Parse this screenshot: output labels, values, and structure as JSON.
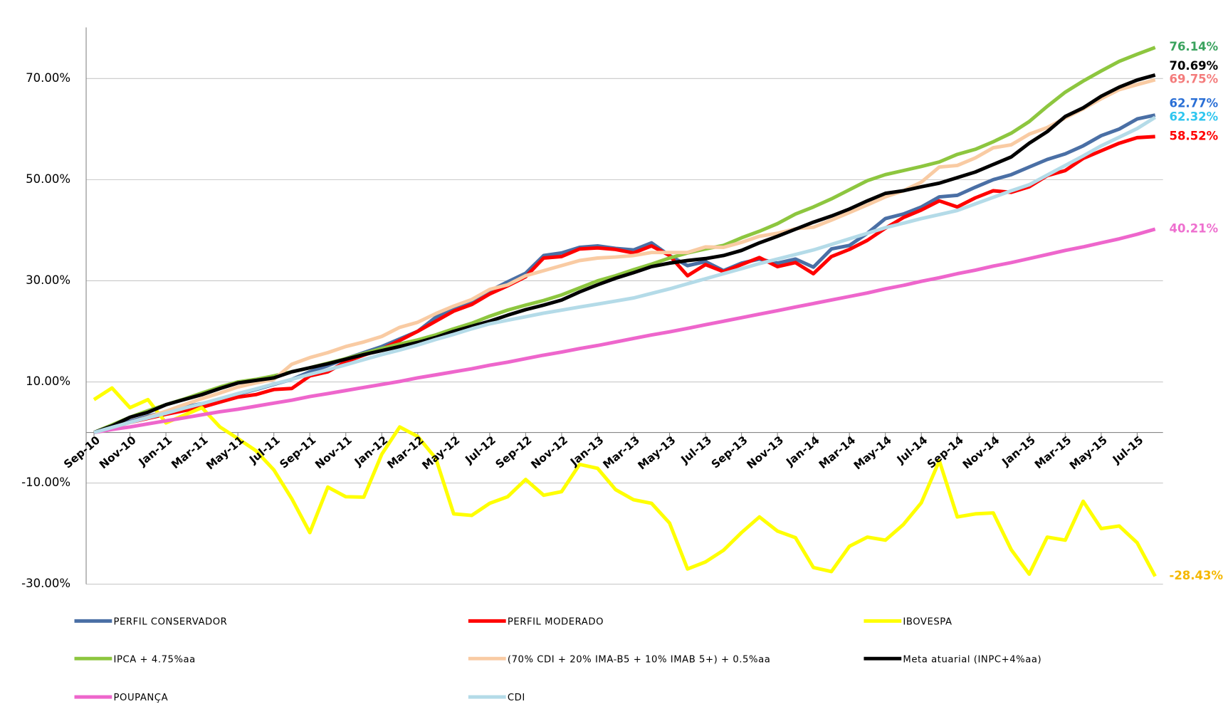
{
  "chart_data": {
    "type": "line",
    "categories": [
      "Sep-10",
      null,
      "Nov-10",
      null,
      "Jan-11",
      null,
      "Mar-11",
      null,
      "May-11",
      null,
      "Jul-11",
      null,
      "Sep-11",
      null,
      "Nov-11",
      null,
      "Jan-12",
      null,
      "Mar-12",
      null,
      "May-12",
      null,
      "Jul-12",
      null,
      "Sep-12",
      null,
      "Nov-12",
      null,
      "Jan-13",
      null,
      "Mar-13",
      null,
      "May-13",
      null,
      "Jul-13",
      null,
      "Sep-13",
      null,
      "Nov-13",
      null,
      "Jan-14",
      null,
      "Mar-14",
      null,
      "May-14",
      null,
      "Jul-14",
      null,
      "Sep-14",
      null,
      "Nov-14",
      null,
      "Jan-15",
      null,
      "Mar-15",
      null,
      "May-15",
      null,
      "Jul-15",
      null
    ],
    "ylim": [
      -30,
      80
    ],
    "yticks": [
      {
        "value": -30,
        "label": "-30.00%"
      },
      {
        "value": -10,
        "label": "-10.00%"
      },
      {
        "value": 10,
        "label": "10.00%"
      },
      {
        "value": 30,
        "label": "30.00%"
      },
      {
        "value": 50,
        "label": "50.00%"
      },
      {
        "value": 70,
        "label": "70.00%"
      }
    ],
    "grid": true,
    "legend": "bottom",
    "series": [
      {
        "name": "PERFIL CONSERVADOR",
        "color": "#4a6fa5",
        "label_color": "#2a6fd6",
        "values": [
          0,
          1.0,
          2.2,
          3.2,
          4.1,
          5.0,
          5.7,
          6.6,
          7.6,
          8.5,
          9.5,
          10.5,
          12.0,
          13.2,
          14.6,
          15.8,
          17.0,
          18.5,
          20.0,
          22.8,
          24.5,
          25.8,
          28.0,
          29.8,
          31.5,
          35.0,
          35.5,
          36.6,
          36.9,
          36.4,
          36.1,
          37.5,
          35.0,
          33.0,
          33.8,
          32.0,
          33.5,
          34.3,
          33.5,
          34.3,
          32.7,
          36.3,
          37.0,
          39.4,
          42.3,
          43.2,
          44.6,
          46.6,
          46.9,
          48.5,
          50.0,
          51.0,
          52.5,
          54.0,
          55.1,
          56.7,
          58.7,
          60.0,
          62.0,
          62.77
        ],
        "value_labels": [
          null,
          null,
          null,
          null,
          null,
          null,
          null,
          null,
          null,
          null,
          null,
          null,
          null,
          null,
          null,
          null,
          null,
          null,
          null,
          null,
          null,
          null,
          null,
          null,
          null,
          null,
          null,
          null,
          null,
          null,
          null,
          null,
          null,
          null,
          null,
          null,
          null,
          null,
          null,
          null,
          null,
          null,
          null,
          null,
          null,
          null,
          null,
          null,
          null,
          null,
          null,
          null,
          null,
          null,
          null,
          null,
          null,
          null,
          null,
          "62.77%"
        ]
      },
      {
        "name": "PERFIL MODERADO",
        "color": "#ff0000",
        "label_color": "#ff0000",
        "values": [
          0,
          1.0,
          2.0,
          2.8,
          3.6,
          4.3,
          5.0,
          6.0,
          7.0,
          7.5,
          8.5,
          8.7,
          11.2,
          12.0,
          14.0,
          15.3,
          16.5,
          18.2,
          20.0,
          22.0,
          24.0,
          25.3,
          27.4,
          29.0,
          30.8,
          34.5,
          34.8,
          36.3,
          36.5,
          36.2,
          35.5,
          36.9,
          35.0,
          31.0,
          33.2,
          31.8,
          33.2,
          34.6,
          32.8,
          33.6,
          31.4,
          34.8,
          36.2,
          38.0,
          40.4,
          42.5,
          44.0,
          45.8,
          44.6,
          46.4,
          47.8,
          47.5,
          48.6,
          50.8,
          51.8,
          54.2,
          55.7,
          57.2,
          58.3,
          58.52
        ],
        "value_labels": [
          null,
          null,
          null,
          null,
          null,
          null,
          null,
          null,
          null,
          null,
          null,
          null,
          null,
          null,
          null,
          null,
          null,
          null,
          null,
          null,
          null,
          null,
          null,
          null,
          null,
          null,
          null,
          null,
          null,
          null,
          null,
          null,
          null,
          null,
          null,
          null,
          null,
          null,
          null,
          null,
          null,
          null,
          null,
          null,
          null,
          null,
          null,
          null,
          null,
          null,
          null,
          null,
          null,
          null,
          null,
          null,
          null,
          null,
          null,
          "58.52%"
        ]
      },
      {
        "name": "IBOVESPA",
        "color": "#ffff00",
        "label_color": "#f5b800",
        "values": [
          6.5,
          8.8,
          4.9,
          6.5,
          1.9,
          3.4,
          4.9,
          1.1,
          -1.2,
          -3.6,
          -7.4,
          -13.1,
          -19.8,
          -10.8,
          -12.7,
          -12.8,
          -4.3,
          1.1,
          -0.8,
          -5.1,
          -16.1,
          -16.4,
          -14.0,
          -12.7,
          -9.3,
          -12.4,
          -11.7,
          -6.3,
          -7.1,
          -11.3,
          -13.3,
          -14.0,
          -17.9,
          -27.0,
          -25.6,
          -23.3,
          -19.8,
          -16.7,
          -19.5,
          -20.8,
          -26.7,
          -27.5,
          -22.5,
          -20.7,
          -21.3,
          -18.2,
          -13.9,
          -5.6,
          -16.7,
          -16.1,
          -15.9,
          -23.2,
          -28.0,
          -20.7,
          -21.3,
          -13.6,
          -19.0,
          -18.5,
          -21.8,
          -28.43
        ],
        "value_labels": [
          null,
          null,
          null,
          null,
          null,
          null,
          null,
          null,
          null,
          null,
          null,
          null,
          null,
          null,
          null,
          null,
          null,
          null,
          null,
          null,
          null,
          null,
          null,
          null,
          null,
          null,
          null,
          null,
          null,
          null,
          null,
          null,
          null,
          null,
          null,
          null,
          null,
          null,
          null,
          null,
          null,
          null,
          null,
          null,
          null,
          null,
          null,
          null,
          null,
          null,
          null,
          null,
          null,
          null,
          null,
          null,
          null,
          null,
          null,
          "-28.43%"
        ]
      },
      {
        "name": "IPCA + 4.75%aa",
        "color": "#8dc63f",
        "label_color": "#3aa35e",
        "values": [
          0,
          1.5,
          3.0,
          4.3,
          5.5,
          6.6,
          7.8,
          9.0,
          10.0,
          10.5,
          11.2,
          12.0,
          12.8,
          13.7,
          14.6,
          15.6,
          16.6,
          17.5,
          18.3,
          19.3,
          20.5,
          21.6,
          23.0,
          24.2,
          25.2,
          26.1,
          27.2,
          28.6,
          30.0,
          31.0,
          32.2,
          33.3,
          34.5,
          35.5,
          36.3,
          37.0,
          38.5,
          39.8,
          41.3,
          43.2,
          44.6,
          46.2,
          48.0,
          49.8,
          51.0,
          51.8,
          52.6,
          53.5,
          55.0,
          56.0,
          57.5,
          59.2,
          61.5,
          64.5,
          67.3,
          69.5,
          71.5,
          73.4,
          74.8,
          76.14
        ],
        "value_labels": [
          null,
          null,
          null,
          null,
          null,
          null,
          null,
          null,
          null,
          null,
          null,
          null,
          null,
          null,
          null,
          null,
          null,
          null,
          null,
          null,
          null,
          null,
          null,
          null,
          null,
          null,
          null,
          null,
          null,
          null,
          null,
          null,
          null,
          null,
          null,
          null,
          null,
          null,
          null,
          null,
          null,
          null,
          null,
          null,
          null,
          null,
          null,
          null,
          null,
          null,
          null,
          null,
          null,
          null,
          null,
          null,
          null,
          null,
          null,
          "76.14%"
        ]
      },
      {
        "name": "(70% CDI + 20% IMA-B5 + 10% IMAB 5+) + 0.5%aa",
        "color": "#f9cba3",
        "label_color": "#f47c7c",
        "values": [
          0,
          1.0,
          2.0,
          3.0,
          4.2,
          5.5,
          6.7,
          7.8,
          9.0,
          9.8,
          10.5,
          13.5,
          14.8,
          15.8,
          17.0,
          17.9,
          19.0,
          20.8,
          21.8,
          23.5,
          25.0,
          26.3,
          28.3,
          29.2,
          31.0,
          32.0,
          33.0,
          34.0,
          34.5,
          34.7,
          35.0,
          35.6,
          35.6,
          35.6,
          36.7,
          36.6,
          37.6,
          38.8,
          39.4,
          40.3,
          40.6,
          42.0,
          43.5,
          45.0,
          46.6,
          47.8,
          49.5,
          52.5,
          52.8,
          54.3,
          56.3,
          56.9,
          59.0,
          60.3,
          62.2,
          64.0,
          66.0,
          67.8,
          68.8,
          69.75
        ],
        "value_labels": [
          null,
          null,
          null,
          null,
          null,
          null,
          null,
          null,
          null,
          null,
          null,
          null,
          null,
          null,
          null,
          null,
          null,
          null,
          null,
          null,
          null,
          null,
          null,
          null,
          null,
          null,
          null,
          null,
          null,
          null,
          null,
          null,
          null,
          null,
          null,
          null,
          null,
          null,
          null,
          null,
          null,
          null,
          null,
          null,
          null,
          null,
          null,
          null,
          null,
          null,
          null,
          null,
          null,
          null,
          null,
          null,
          null,
          null,
          null,
          "69.75%"
        ]
      },
      {
        "name": "Meta atuarial (INPC+4%aa)",
        "color": "#000000",
        "label_color": "#000000",
        "values": [
          0,
          1.3,
          3.0,
          4.0,
          5.5,
          6.5,
          7.5,
          8.7,
          9.8,
          10.3,
          10.8,
          12.0,
          12.8,
          13.6,
          14.5,
          15.4,
          16.2,
          17.0,
          17.8,
          18.8,
          20.0,
          21.0,
          22.0,
          23.2,
          24.3,
          25.2,
          26.2,
          27.8,
          29.2,
          30.5,
          31.6,
          32.8,
          33.5,
          34.0,
          34.4,
          35.0,
          36.0,
          37.5,
          38.8,
          40.2,
          41.6,
          42.8,
          44.2,
          45.8,
          47.3,
          47.8,
          48.6,
          49.3,
          50.4,
          51.5,
          53.0,
          54.5,
          57.2,
          59.5,
          62.5,
          64.2,
          66.5,
          68.3,
          69.7,
          70.69
        ],
        "value_labels": [
          null,
          null,
          null,
          null,
          null,
          null,
          null,
          null,
          null,
          null,
          null,
          null,
          null,
          null,
          null,
          null,
          null,
          null,
          null,
          null,
          null,
          null,
          null,
          null,
          null,
          null,
          null,
          null,
          null,
          null,
          null,
          null,
          null,
          null,
          null,
          null,
          null,
          null,
          null,
          null,
          null,
          null,
          null,
          null,
          null,
          null,
          null,
          null,
          null,
          null,
          null,
          null,
          null,
          null,
          null,
          null,
          null,
          null,
          null,
          "70.69%"
        ]
      },
      {
        "name": "POUPANÇA",
        "color": "#ee66cc",
        "label_color": "#ee6fcf",
        "values": [
          0,
          0.6,
          1.1,
          1.7,
          2.3,
          2.9,
          3.5,
          4.1,
          4.6,
          5.2,
          5.8,
          6.4,
          7.1,
          7.7,
          8.3,
          8.9,
          9.5,
          10.1,
          10.8,
          11.4,
          12.0,
          12.6,
          13.3,
          13.9,
          14.6,
          15.3,
          15.9,
          16.6,
          17.2,
          17.9,
          18.6,
          19.3,
          19.9,
          20.6,
          21.3,
          22.0,
          22.7,
          23.4,
          24.1,
          24.8,
          25.5,
          26.2,
          26.9,
          27.6,
          28.4,
          29.1,
          29.9,
          30.6,
          31.4,
          32.1,
          32.9,
          33.6,
          34.4,
          35.2,
          36.0,
          36.7,
          37.5,
          38.3,
          39.2,
          40.21
        ],
        "value_labels": [
          null,
          null,
          null,
          null,
          null,
          null,
          null,
          null,
          null,
          null,
          null,
          null,
          null,
          null,
          null,
          null,
          null,
          null,
          null,
          null,
          null,
          null,
          null,
          null,
          null,
          null,
          null,
          null,
          null,
          null,
          null,
          null,
          null,
          null,
          null,
          null,
          null,
          null,
          null,
          null,
          null,
          null,
          null,
          null,
          null,
          null,
          null,
          null,
          null,
          null,
          null,
          null,
          null,
          null,
          null,
          null,
          null,
          null,
          null,
          "40.21%"
        ]
      },
      {
        "name": "CDI",
        "color": "#b4dbe8",
        "label_color": "#2fc6ef",
        "values": [
          0,
          1.0,
          2.0,
          2.9,
          3.8,
          4.8,
          5.7,
          6.7,
          7.7,
          8.6,
          9.6,
          10.5,
          11.5,
          12.4,
          13.4,
          14.4,
          15.4,
          16.3,
          17.3,
          18.4,
          19.4,
          20.5,
          21.5,
          22.2,
          22.9,
          23.6,
          24.2,
          24.8,
          25.4,
          26.0,
          26.6,
          27.5,
          28.4,
          29.4,
          30.4,
          31.4,
          32.4,
          33.4,
          34.3,
          35.2,
          36.1,
          37.2,
          38.3,
          39.4,
          40.5,
          41.4,
          42.3,
          43.1,
          43.9,
          45.2,
          46.5,
          47.8,
          49.0,
          50.9,
          52.8,
          54.7,
          56.7,
          58.4,
          60.1,
          62.32
        ],
        "value_labels": [
          null,
          null,
          null,
          null,
          null,
          null,
          null,
          null,
          null,
          null,
          null,
          null,
          null,
          null,
          null,
          null,
          null,
          null,
          null,
          null,
          null,
          null,
          null,
          null,
          null,
          null,
          null,
          null,
          null,
          null,
          null,
          null,
          null,
          null,
          null,
          null,
          null,
          null,
          null,
          null,
          null,
          null,
          null,
          null,
          null,
          null,
          null,
          null,
          null,
          null,
          null,
          null,
          null,
          null,
          null,
          null,
          null,
          null,
          null,
          "62.32%"
        ]
      }
    ]
  }
}
